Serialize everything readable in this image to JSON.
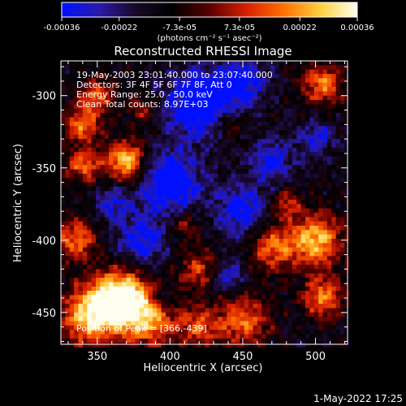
{
  "chart_data": {
    "type": "heatmap",
    "title": "Reconstructed RHESSI Image",
    "xlabel": "Heliocentric X (arcsec)",
    "ylabel": "Heliocentric Y (arcsec)",
    "xlim": [
      325,
      522
    ],
    "ylim": [
      -472,
      -276
    ],
    "x_ticks": [
      350,
      400,
      450,
      500
    ],
    "y_ticks": [
      -300,
      -350,
      -400,
      -450
    ],
    "colorbar": {
      "range": [
        -0.00036,
        0.00036
      ],
      "ticks": [
        "-0.00036",
        "-0.00022",
        "-7.3e-05",
        "7.3e-05",
        "0.00022",
        "0.00036"
      ],
      "units": "(photons cm⁻² s⁻¹ asec⁻²)",
      "colors": [
        "#0010ff",
        "#2a1aa8",
        "#180828",
        "#000000",
        "#5a0000",
        "#d82000",
        "#ff7000",
        "#ffd040",
        "#fffff0"
      ]
    },
    "annotations": {
      "time_range": "19-May-2003 23:01:40.000 to 23:07:40.000",
      "detectors": "Detectors: 3F 4F 5F 6F 7F 8F, Att 0",
      "energy": "Energy Range: 25.0 - 50.0 keV",
      "clean": "Clean     Total counts: 8.97E+03",
      "peak": "Position of Peak = [366,-439]"
    },
    "peak": {
      "x": 366,
      "y": -439
    },
    "hot_regions": [
      {
        "x": 366,
        "y": -439,
        "r": 18,
        "v": 1.0
      },
      {
        "x": 346,
        "y": -452,
        "r": 20,
        "v": 0.85
      },
      {
        "x": 385,
        "y": -455,
        "r": 18,
        "v": 0.7
      },
      {
        "x": 370,
        "y": -345,
        "r": 14,
        "v": 0.8
      },
      {
        "x": 340,
        "y": -348,
        "r": 12,
        "v": 0.55
      },
      {
        "x": 340,
        "y": -320,
        "r": 12,
        "v": 0.6
      },
      {
        "x": 350,
        "y": -300,
        "r": 12,
        "v": 0.5
      },
      {
        "x": 380,
        "y": -310,
        "r": 9,
        "v": 0.35
      },
      {
        "x": 505,
        "y": -292,
        "r": 14,
        "v": 0.6
      },
      {
        "x": 500,
        "y": -400,
        "r": 18,
        "v": 0.75
      },
      {
        "x": 470,
        "y": -405,
        "r": 16,
        "v": 0.55
      },
      {
        "x": 505,
        "y": -440,
        "r": 14,
        "v": 0.6
      },
      {
        "x": 420,
        "y": -420,
        "r": 14,
        "v": 0.45
      },
      {
        "x": 450,
        "y": -455,
        "r": 18,
        "v": 0.55
      },
      {
        "x": 420,
        "y": -460,
        "r": 14,
        "v": 0.5
      },
      {
        "x": 410,
        "y": -390,
        "r": 10,
        "v": 0.35
      },
      {
        "x": 480,
        "y": -375,
        "r": 10,
        "v": 0.4
      },
      {
        "x": 335,
        "y": -400,
        "r": 14,
        "v": 0.55
      },
      {
        "x": 440,
        "y": -320,
        "r": 9,
        "v": 0.3
      }
    ],
    "cold_regions": [
      {
        "x": 420,
        "y": -305,
        "r": 22,
        "v": -0.7
      },
      {
        "x": 450,
        "y": -290,
        "r": 16,
        "v": -0.5
      },
      {
        "x": 400,
        "y": -360,
        "r": 22,
        "v": -0.6
      },
      {
        "x": 450,
        "y": -380,
        "r": 18,
        "v": -0.5
      },
      {
        "x": 470,
        "y": -345,
        "r": 14,
        "v": -0.45
      },
      {
        "x": 380,
        "y": -400,
        "r": 16,
        "v": -0.5
      },
      {
        "x": 360,
        "y": -375,
        "r": 12,
        "v": -0.4
      },
      {
        "x": 440,
        "y": -425,
        "r": 12,
        "v": -0.4
      },
      {
        "x": 500,
        "y": -330,
        "r": 12,
        "v": -0.4
      },
      {
        "x": 395,
        "y": -440,
        "r": 8,
        "v": -0.3
      }
    ]
  },
  "footer": {
    "date": "1-May-2022 17:25"
  }
}
